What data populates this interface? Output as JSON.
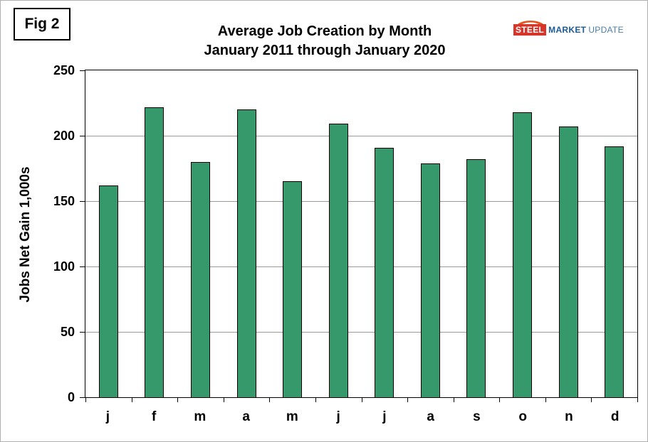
{
  "fig_label": "Fig 2",
  "logo": {
    "steel": "STEEL",
    "market": "MARKET",
    "update": "UPDATE",
    "swoosh_color": "#e8541d"
  },
  "chart_data": {
    "type": "bar",
    "title": "Average Job Creation by Month",
    "subtitle": "January 2011 through January 2020",
    "categories": [
      "j",
      "f",
      "m",
      "a",
      "m",
      "j",
      "j",
      "a",
      "s",
      "o",
      "n",
      "d"
    ],
    "values": [
      162,
      222,
      180,
      220,
      165,
      209,
      191,
      179,
      182,
      218,
      207,
      192
    ],
    "xlabel": "",
    "ylabel": "Jobs Net Gain 1,000s",
    "ylim": [
      0,
      250
    ],
    "yticks": [
      0,
      50,
      100,
      150,
      200,
      250
    ],
    "grid": true,
    "legend": "none",
    "bar_color": "#36996b",
    "bar_border_color": "#000000",
    "gridline_color": "#9a9a9a"
  }
}
